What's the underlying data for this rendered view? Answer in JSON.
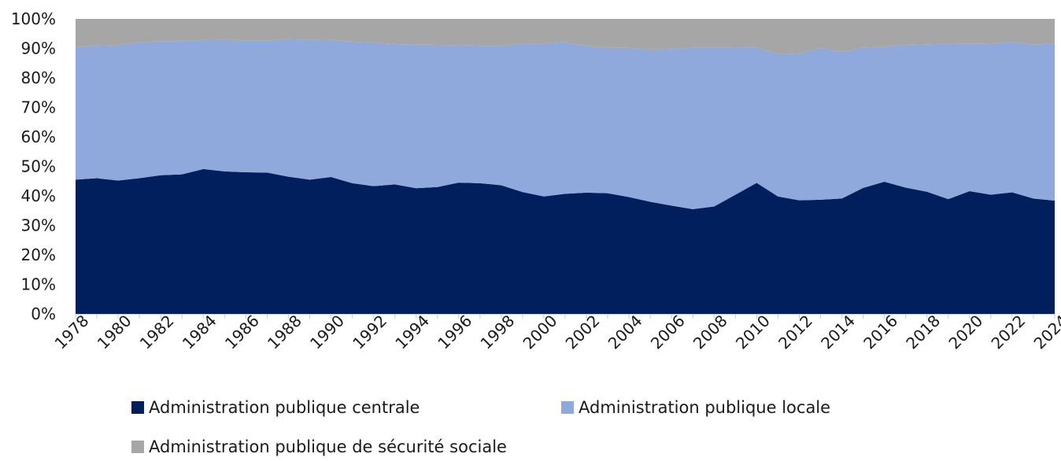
{
  "chart_data": {
    "type": "area",
    "stacked": true,
    "percent": true,
    "x": [
      1978,
      1979,
      1980,
      1981,
      1982,
      1983,
      1984,
      1985,
      1986,
      1987,
      1988,
      1989,
      1990,
      1991,
      1992,
      1993,
      1994,
      1995,
      1996,
      1997,
      1998,
      1999,
      2000,
      2001,
      2002,
      2003,
      2004,
      2005,
      2006,
      2007,
      2008,
      2009,
      2010,
      2011,
      2012,
      2013,
      2014,
      2015,
      2016,
      2017,
      2018,
      2019,
      2020,
      2021,
      2022,
      2023,
      2024
    ],
    "x_tick_labels": [
      "1978",
      "1980",
      "1982",
      "1984",
      "1986",
      "1988",
      "1990",
      "1992",
      "1994",
      "1996",
      "1998",
      "2000",
      "2002",
      "2004",
      "2006",
      "2008",
      "2010",
      "2012",
      "2014",
      "2016",
      "2018",
      "2020",
      "2022",
      "2024"
    ],
    "y_tick_labels": [
      "0%",
      "10%",
      "20%",
      "30%",
      "40%",
      "50%",
      "60%",
      "70%",
      "80%",
      "90%",
      "100%"
    ],
    "ylim": [
      0,
      100
    ],
    "grid": false,
    "legend_position": "bottom",
    "series": [
      {
        "name": "Administration publique centrale",
        "color": "#001f5c",
        "values": [
          45.5,
          46.0,
          45.2,
          46.0,
          47.0,
          47.3,
          49.1,
          48.3,
          48.0,
          47.9,
          46.5,
          45.5,
          46.4,
          44.3,
          43.3,
          43.9,
          42.6,
          43.0,
          44.5,
          44.3,
          43.6,
          41.3,
          39.8,
          40.7,
          41.1,
          40.9,
          39.6,
          38.0,
          36.7,
          35.5,
          36.4,
          40.4,
          44.4,
          39.8,
          38.5,
          38.7,
          39.1,
          42.7,
          44.8,
          42.8,
          41.4,
          38.9,
          41.6,
          40.4,
          41.2,
          39.1,
          38.4
        ]
      },
      {
        "name": "Administration publique locale",
        "color": "#8fa9dc",
        "values": [
          45.0,
          45.0,
          46.0,
          46.0,
          45.5,
          45.2,
          43.8,
          44.7,
          44.7,
          44.8,
          46.6,
          47.5,
          46.5,
          48.0,
          48.7,
          47.6,
          48.7,
          48.2,
          46.6,
          46.6,
          47.3,
          50.4,
          51.9,
          51.4,
          49.8,
          49.3,
          50.6,
          51.6,
          53.1,
          54.8,
          53.9,
          50.0,
          45.9,
          48.3,
          49.8,
          51.5,
          49.7,
          47.6,
          45.8,
          48.4,
          50.0,
          52.7,
          50.1,
          51.2,
          51.1,
          52.2,
          53.3
        ]
      },
      {
        "name": "Administration publique de sécurité sociale",
        "color": "#a6a6a6",
        "values": [
          9.5,
          9.0,
          8.8,
          8.0,
          7.5,
          7.5,
          7.1,
          7.0,
          7.3,
          7.3,
          6.9,
          7.0,
          7.1,
          7.7,
          8.0,
          8.5,
          8.7,
          8.8,
          8.9,
          9.1,
          9.1,
          8.3,
          8.3,
          7.9,
          9.1,
          9.8,
          9.8,
          10.4,
          10.2,
          9.7,
          9.7,
          9.6,
          9.7,
          11.9,
          11.7,
          9.8,
          11.2,
          9.7,
          9.4,
          8.8,
          8.6,
          8.4,
          8.3,
          8.4,
          7.7,
          8.7,
          8.3
        ]
      }
    ]
  }
}
